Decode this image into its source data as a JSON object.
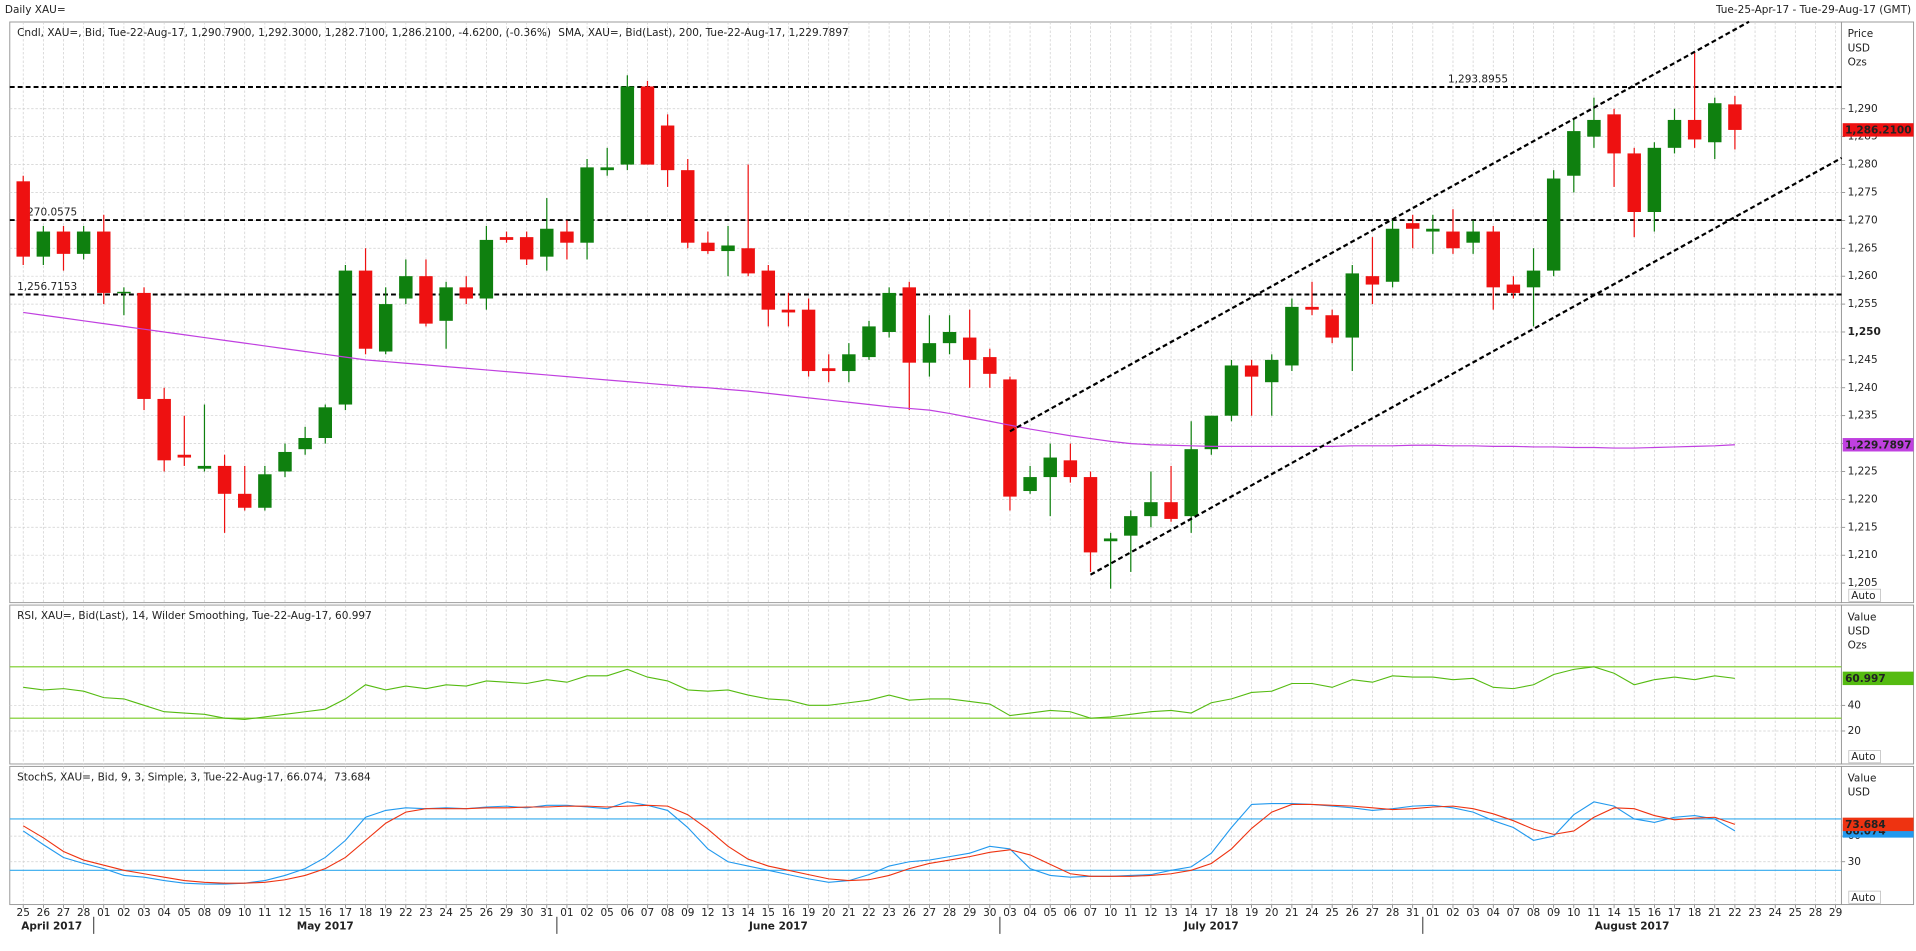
{
  "header": {
    "title": "Daily XAU=",
    "range": "Tue-25-Apr-17 - Tue-29-Aug-17 (GMT)"
  },
  "chart_data": [
    {
      "type": "candlestick",
      "legend": [
        {
          "text": "Cndl, XAU=, Bid, Tue-22-Aug-17, 1,290.7900, 1,292.3000, 1,282.7100, 1,286.2100, -4.6200, (-0.36%)",
          "color": "#e01010"
        },
        {
          "text": "SMA, XAU=, Bid(Last), 200, Tue-22-Aug-17, 1,229.7897",
          "color": "#c040e0"
        }
      ],
      "categories": [
        "25",
        "26",
        "27",
        "28",
        "01",
        "02",
        "03",
        "04",
        "05",
        "08",
        "09",
        "10",
        "11",
        "12",
        "15",
        "16",
        "17",
        "18",
        "19",
        "22",
        "23",
        "24",
        "25",
        "26",
        "29",
        "30",
        "31",
        "01",
        "02",
        "05",
        "06",
        "07",
        "08",
        "09",
        "12",
        "13",
        "14",
        "15",
        "16",
        "19",
        "20",
        "21",
        "22",
        "23",
        "26",
        "27",
        "28",
        "29",
        "30",
        "03",
        "04",
        "05",
        "06",
        "07",
        "10",
        "11",
        "12",
        "13",
        "14",
        "17",
        "18",
        "19",
        "20",
        "21",
        "24",
        "25",
        "26",
        "27",
        "28",
        "31",
        "01",
        "02",
        "03",
        "04",
        "07",
        "08",
        "09",
        "10",
        "11",
        "14",
        "15",
        "16",
        "17",
        "18",
        "21",
        "22",
        "23",
        "24",
        "25",
        "28",
        "29"
      ],
      "months": [
        {
          "label": "April 2017",
          "start": 0
        },
        {
          "label": "May 2017",
          "start": 4
        },
        {
          "label": "June 2017",
          "start": 27
        },
        {
          "label": "July 2017",
          "start": 49
        },
        {
          "label": "August 2017",
          "start": 70
        }
      ],
      "open": [
        1277,
        1263.5,
        1268,
        1264,
        1268,
        1257,
        1257,
        1238,
        1228,
        1225.5,
        1226,
        1221,
        1218.5,
        1225,
        1229,
        1231,
        1237,
        1261,
        1246.5,
        1256,
        1260,
        1252,
        1258,
        1256,
        1267,
        1267,
        1263.5,
        1268,
        1266,
        1279,
        1280,
        1294,
        1287,
        1279,
        1266,
        1264.5,
        1265,
        1261,
        1254,
        1254,
        1243.5,
        1243,
        1245.5,
        1250,
        1258,
        1244.5,
        1248,
        1249,
        1245.5,
        1241.5,
        1221.5,
        1224,
        1227,
        1224,
        1212.5,
        1213.5,
        1217,
        1219.5,
        1217,
        1229,
        1235,
        1244,
        1241,
        1244,
        1254.5,
        1253,
        1249,
        1260,
        1259,
        1269.5,
        1268,
        1268,
        1266,
        1268,
        1258.5,
        1258,
        1261,
        1278,
        1285,
        1289,
        1282,
        1271.5,
        1283,
        1288,
        1284,
        1290.79,
        null,
        null,
        null,
        null,
        null
      ],
      "high": [
        1278,
        1269,
        1269,
        1269,
        1271,
        1258,
        1258,
        1240,
        1235,
        1237,
        1228,
        1226,
        1226,
        1230,
        1233,
        1237,
        1262,
        1265,
        1258,
        1263,
        1263,
        1259,
        1260,
        1269,
        1268,
        1268,
        1274,
        1270,
        1281,
        1283,
        1296,
        1295,
        1289,
        1281,
        1268,
        1269,
        1280,
        1262,
        1257,
        1256,
        1246,
        1248,
        1252,
        1258,
        1259,
        1253,
        1253,
        1254,
        1247,
        1242,
        1226,
        1230,
        1230,
        1225,
        1214,
        1218,
        1225,
        1226,
        1234,
        1235,
        1245,
        1245,
        1246,
        1256,
        1259,
        1254,
        1262,
        1267,
        1270,
        1271,
        1271,
        1272,
        1270,
        1269,
        1260,
        1265,
        1279,
        1288,
        1292,
        1290,
        1283,
        1284,
        1290,
        1300,
        1292,
        1292.3,
        null,
        null,
        null,
        null,
        null
      ],
      "low": [
        1262,
        1262,
        1261,
        1263,
        1255,
        1253,
        1236,
        1225,
        1226,
        1225,
        1214,
        1218,
        1218,
        1224,
        1228,
        1230,
        1236,
        1246,
        1246,
        1255,
        1251,
        1247,
        1255,
        1254,
        1266,
        1262,
        1261,
        1263,
        1263,
        1278,
        1279,
        1280,
        1276,
        1265,
        1264,
        1260,
        1260,
        1251,
        1251,
        1242,
        1241,
        1241,
        1245,
        1249,
        1236,
        1242,
        1246,
        1240,
        1240,
        1218,
        1221,
        1217,
        1223,
        1207,
        1204,
        1207,
        1215,
        1216,
        1214,
        1228,
        1234,
        1235,
        1235,
        1243,
        1253,
        1248,
        1243,
        1255,
        1258,
        1265,
        1264,
        1264,
        1264,
        1254,
        1256,
        1251,
        1260,
        1275,
        1283,
        1276,
        1267,
        1268,
        1282,
        1283,
        1281,
        1282.71,
        null,
        null,
        null,
        null,
        null
      ],
      "close": [
        1263.5,
        1268,
        1264,
        1268,
        1257,
        1257.2,
        1238,
        1227,
        1227.5,
        1226,
        1221,
        1218.5,
        1224.5,
        1228.5,
        1231,
        1236.5,
        1261,
        1247,
        1255,
        1260,
        1251.5,
        1258,
        1256,
        1266.5,
        1266.5,
        1263,
        1268.5,
        1266,
        1279.5,
        1279.5,
        1294,
        1280,
        1279,
        1266,
        1264.5,
        1265.5,
        1260.5,
        1254,
        1253.5,
        1243,
        1243,
        1246,
        1251,
        1257,
        1244.5,
        1248,
        1250,
        1245,
        1242.5,
        1220.5,
        1224,
        1227.5,
        1224,
        1210.5,
        1213,
        1217,
        1219.5,
        1216.5,
        1229,
        1235,
        1244,
        1242,
        1245,
        1254.5,
        1254,
        1249,
        1260.5,
        1258.5,
        1268.5,
        1268.5,
        1268.5,
        1265,
        1268,
        1258,
        1257,
        1261,
        1277.5,
        1286,
        1288,
        1282,
        1271.5,
        1283,
        1288,
        1284.5,
        1291,
        1286.21,
        null,
        null,
        null,
        null,
        null
      ],
      "up_color": "#0f800f",
      "down_color": "#ee1111",
      "last_label": "1,286.2100",
      "overlays": [
        {
          "color": "#c040e0",
          "last_label": "1,229.7897",
          "values": [
            1253.5,
            1253,
            1252.5,
            1252,
            1251.5,
            1251,
            1250.5,
            1250,
            1249.5,
            1249,
            1248.5,
            1248,
            1247.5,
            1247,
            1246.5,
            1246,
            1245.5,
            1245,
            1244.7,
            1244.4,
            1244.1,
            1243.8,
            1243.5,
            1243.2,
            1242.9,
            1242.6,
            1242.3,
            1242,
            1241.7,
            1241.4,
            1241.1,
            1240.8,
            1240.5,
            1240.2,
            1240,
            1239.7,
            1239.4,
            1239,
            1238.6,
            1238.2,
            1237.8,
            1237.4,
            1237,
            1236.6,
            1236.3,
            1236,
            1235.4,
            1234.7,
            1234,
            1233.3,
            1232.6,
            1232,
            1231.4,
            1230.9,
            1230.4,
            1230,
            1229.8,
            1229.7,
            1229.6,
            1229.5,
            1229.5,
            1229.5,
            1229.5,
            1229.5,
            1229.5,
            1229.5,
            1229.6,
            1229.6,
            1229.6,
            1229.7,
            1229.7,
            1229.6,
            1229.6,
            1229.5,
            1229.5,
            1229.4,
            1229.4,
            1229.3,
            1229.3,
            1229.2,
            1229.2,
            1229.3,
            1229.4,
            1229.5,
            1229.6,
            1229.7897,
            null,
            null,
            null,
            null,
            null
          ]
        }
      ],
      "levels": [
        {
          "value": 1293.8955,
          "label": "1,293.8955"
        },
        {
          "value": 1270.0575,
          "label": "1,270.0575"
        },
        {
          "value": 1256.7153,
          "label": "1,256.7153"
        }
      ],
      "level_color": "#000000",
      "trendlines": [
        {
          "x": [
            49,
            85.7
          ],
          "y": [
            1232.2,
            1305.6
          ]
        },
        {
          "x": [
            53,
            90.3
          ],
          "y": [
            1206.5,
            1281.2
          ]
        }
      ],
      "ylim": [
        1201.5,
        1305.55
      ],
      "yticks": [
        {
          "value": 1205,
          "label": "1,205"
        },
        {
          "value": 1210,
          "label": "1,210"
        },
        {
          "value": 1215,
          "label": "1,215"
        },
        {
          "value": 1220,
          "label": "1,220"
        },
        {
          "value": 1225,
          "label": "1,225"
        },
        {
          "value": 1230,
          "label": "1,230"
        },
        {
          "value": 1235,
          "label": "1,235"
        },
        {
          "value": 1240,
          "label": "1,240"
        },
        {
          "value": 1245,
          "label": "1,245"
        },
        {
          "value": 1250,
          "label": "1,250"
        },
        {
          "value": 1255,
          "label": "1,255"
        },
        {
          "value": 1260,
          "label": "1,260"
        },
        {
          "value": 1265,
          "label": "1,265"
        },
        {
          "value": 1270,
          "label": "1,270"
        },
        {
          "value": 1275,
          "label": "1,275"
        },
        {
          "value": 1280,
          "label": "1,280"
        },
        {
          "value": 1285,
          "label": "1,285"
        },
        {
          "value": 1290,
          "label": "1,290"
        }
      ],
      "axis_title": [
        "Price",
        "USD",
        "Ozs"
      ],
      "auto": "Auto",
      "grid": true
    },
    {
      "type": "line",
      "legend": [
        {
          "text": "RSI, XAU=, Bid(Last), 14, Wilder Smoothing, Tue-22-Aug-17, 60.997",
          "color": "#55bb11"
        }
      ],
      "series": [
        {
          "color": "#55bb11",
          "last_label": "60.997",
          "values": [
            54,
            52,
            53,
            51,
            46,
            45,
            40,
            35,
            34,
            33,
            30,
            29,
            31,
            33,
            35,
            37,
            45,
            56,
            52,
            55,
            53,
            56,
            55,
            59,
            58,
            57,
            60,
            58,
            63,
            63,
            68,
            62,
            59,
            52,
            51,
            52,
            48,
            45,
            44,
            40,
            40,
            42,
            44,
            48,
            44,
            45,
            45,
            43,
            41,
            32,
            34,
            36,
            35,
            30,
            31,
            33,
            35,
            36,
            34,
            42,
            45,
            50,
            51,
            57,
            57,
            54,
            60,
            58,
            63,
            62,
            62,
            60,
            61,
            54,
            53,
            56,
            64,
            68,
            70,
            65,
            56,
            60,
            62,
            60,
            63,
            60.997,
            null,
            null,
            null,
            null,
            null
          ]
        }
      ],
      "levels": [
        70,
        30
      ],
      "level_color": "#77cc22",
      "ylim": [
        -5.7,
        118.1
      ],
      "yticks": [
        20,
        40
      ],
      "axis_title": [
        "Value",
        "USD",
        "Ozs"
      ],
      "auto": "Auto",
      "grid": true
    },
    {
      "type": "line",
      "legend": [
        {
          "text": "StochS, XAU=, Bid, 9, 3, Simple, 3, Tue-22-Aug-17, 66.074,",
          "color": "#2299ee"
        },
        {
          "text": "73.684",
          "color": "#ee3311"
        }
      ],
      "series": [
        {
          "color": "#2299ee",
          "last_label": "66.074",
          "values": [
            66,
            50,
            35,
            28,
            22,
            14,
            12,
            8,
            5,
            4,
            4,
            5,
            8,
            14,
            22,
            35,
            55,
            82,
            90,
            93,
            92,
            93,
            92,
            94,
            95,
            93,
            96,
            96,
            94,
            92,
            100,
            96,
            90,
            70,
            45,
            30,
            25,
            20,
            15,
            10,
            6,
            8,
            15,
            25,
            30,
            32,
            36,
            40,
            48,
            45,
            22,
            14,
            12,
            13,
            13,
            14,
            15,
            20,
            24,
            40,
            70,
            97,
            98,
            98,
            97,
            95,
            93,
            90,
            92,
            95,
            96,
            93,
            88,
            78,
            70,
            55,
            60,
            85,
            100,
            95,
            80,
            76,
            82,
            84,
            80,
            66.074,
            null,
            null,
            null,
            null,
            null
          ]
        },
        {
          "color": "#ee3311",
          "last_label": "73.684",
          "values": [
            72,
            58,
            42,
            32,
            26,
            20,
            16,
            12,
            8,
            6,
            5,
            5,
            6,
            9,
            14,
            22,
            35,
            55,
            75,
            88,
            92,
            92,
            92,
            93,
            93,
            94,
            94,
            95,
            95,
            94,
            95,
            96,
            95,
            85,
            68,
            48,
            33,
            25,
            20,
            15,
            10,
            8,
            9,
            14,
            22,
            28,
            32,
            36,
            41,
            44,
            38,
            27,
            16,
            13,
            13,
            13,
            14,
            16,
            20,
            28,
            45,
            69,
            88,
            97,
            97,
            96,
            95,
            93,
            91,
            92,
            94,
            95,
            92,
            86,
            78,
            68,
            62,
            66,
            82,
            93,
            92,
            84,
            79,
            81,
            82,
            73.684,
            null,
            null,
            null,
            null,
            null
          ]
        }
      ],
      "levels": [
        80,
        20
      ],
      "level_color": "#33aaee",
      "ylim": [
        -20,
        141.4
      ],
      "yticks": [
        30,
        60
      ],
      "axis_title": [
        "Value",
        "USD"
      ],
      "auto": "Auto",
      "grid": true
    }
  ]
}
